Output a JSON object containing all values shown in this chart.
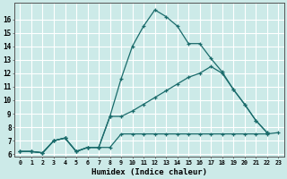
{
  "xlabel": "Humidex (Indice chaleur)",
  "bg_color": "#cceae8",
  "line_color": "#1a6b6b",
  "grid_color": "#ffffff",
  "xlim": [
    -0.5,
    23.5
  ],
  "ylim": [
    5.8,
    17.2
  ],
  "xticks": [
    0,
    1,
    2,
    3,
    4,
    5,
    6,
    7,
    8,
    9,
    10,
    11,
    12,
    13,
    14,
    15,
    16,
    17,
    18,
    19,
    20,
    21,
    22,
    23
  ],
  "yticks": [
    6,
    7,
    8,
    9,
    10,
    11,
    12,
    13,
    14,
    15,
    16
  ],
  "series": [
    {
      "x": [
        0,
        1,
        2,
        3,
        4,
        5,
        6,
        7,
        8,
        9,
        10,
        11,
        12,
        13,
        14,
        15,
        16,
        17,
        18,
        19,
        20,
        21,
        22
      ],
      "y": [
        6.2,
        6.2,
        6.1,
        7.0,
        7.2,
        6.2,
        6.5,
        6.5,
        8.8,
        11.6,
        14.0,
        15.5,
        16.7,
        16.2,
        15.5,
        14.2,
        14.2,
        13.1,
        12.1,
        10.8,
        9.7,
        8.5,
        7.6
      ]
    },
    {
      "x": [
        0,
        1,
        2,
        3,
        4,
        5,
        6,
        7,
        8,
        9,
        10,
        11,
        12,
        13,
        14,
        15,
        16,
        17,
        18,
        19,
        20,
        21,
        22
      ],
      "y": [
        6.2,
        6.2,
        6.1,
        7.0,
        7.2,
        6.2,
        6.5,
        6.5,
        8.8,
        8.8,
        9.2,
        9.7,
        10.2,
        10.7,
        11.2,
        11.7,
        12.0,
        12.5,
        12.0,
        10.8,
        9.7,
        8.5,
        7.6
      ]
    },
    {
      "x": [
        0,
        1,
        2,
        3,
        4,
        5,
        6,
        7,
        8,
        9,
        10,
        11,
        12,
        13,
        14,
        15,
        16,
        17,
        18,
        19,
        20,
        21,
        22,
        23
      ],
      "y": [
        6.2,
        6.2,
        6.1,
        7.0,
        7.2,
        6.2,
        6.5,
        6.5,
        6.5,
        7.5,
        7.5,
        7.5,
        7.5,
        7.5,
        7.5,
        7.5,
        7.5,
        7.5,
        7.5,
        7.5,
        7.5,
        7.5,
        7.5,
        7.6
      ]
    }
  ]
}
